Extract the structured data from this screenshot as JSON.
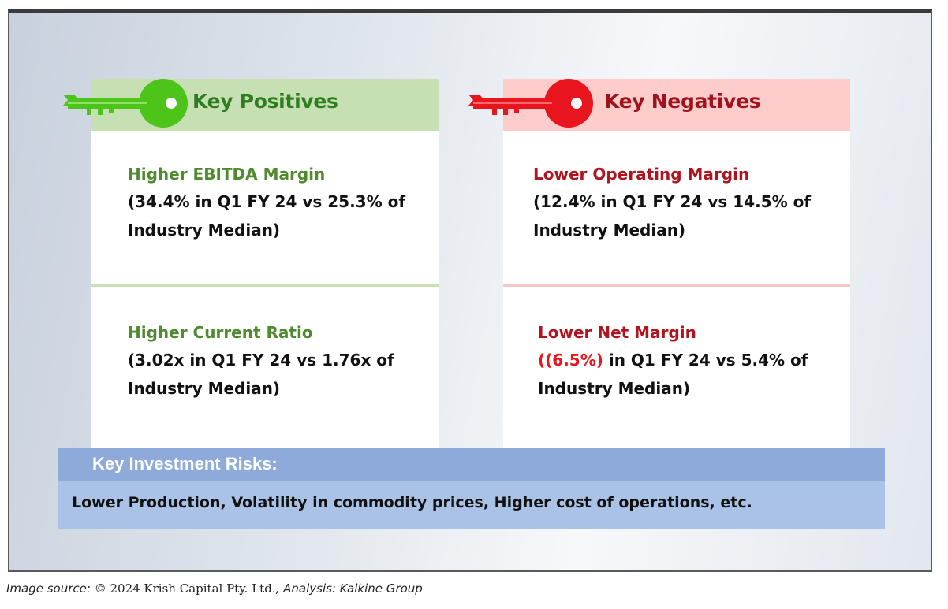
{
  "positives": {
    "title": "Key Positives",
    "items": [
      {
        "title": "Higher EBITDA Margin",
        "line1": "(34.4% in Q1 FY 24 vs 25.3% of",
        "line2": "Industry Median)"
      },
      {
        "title": "Higher Current Ratio",
        "line1": "(3.02x in Q1 FY 24 vs 1.76x of",
        "line2": "Industry Median)"
      }
    ]
  },
  "negatives": {
    "title": "Key Negatives",
    "items": [
      {
        "title": "Lower Operating Margin",
        "line1": "(12.4% in Q1 FY 24 vs 14.5% of",
        "line2": "Industry Median)"
      },
      {
        "title": "Lower Net Margin",
        "line1_highlight": "((6.5%)",
        "line1_rest": " in Q1 FY 24 vs 5.4% of",
        "line2": "Industry Median)"
      }
    ]
  },
  "risks": {
    "title": "Key Investment Risks:",
    "text": "Lower Production, Volatility in commodity prices, Higher cost of operations, etc."
  },
  "caption": {
    "prefix": "Image source: ",
    "source": "© 2024 Krish Capital Pty. Ltd.",
    "suffix": ", Analysis: Kalkine Group"
  },
  "colors": {
    "positive_accent": "#2e7d1f",
    "negative_accent": "#a0121c",
    "positive_key": "#4cc41a",
    "negative_key": "#e8141e"
  },
  "icons": {
    "positive": "key-icon",
    "negative": "key-icon"
  }
}
